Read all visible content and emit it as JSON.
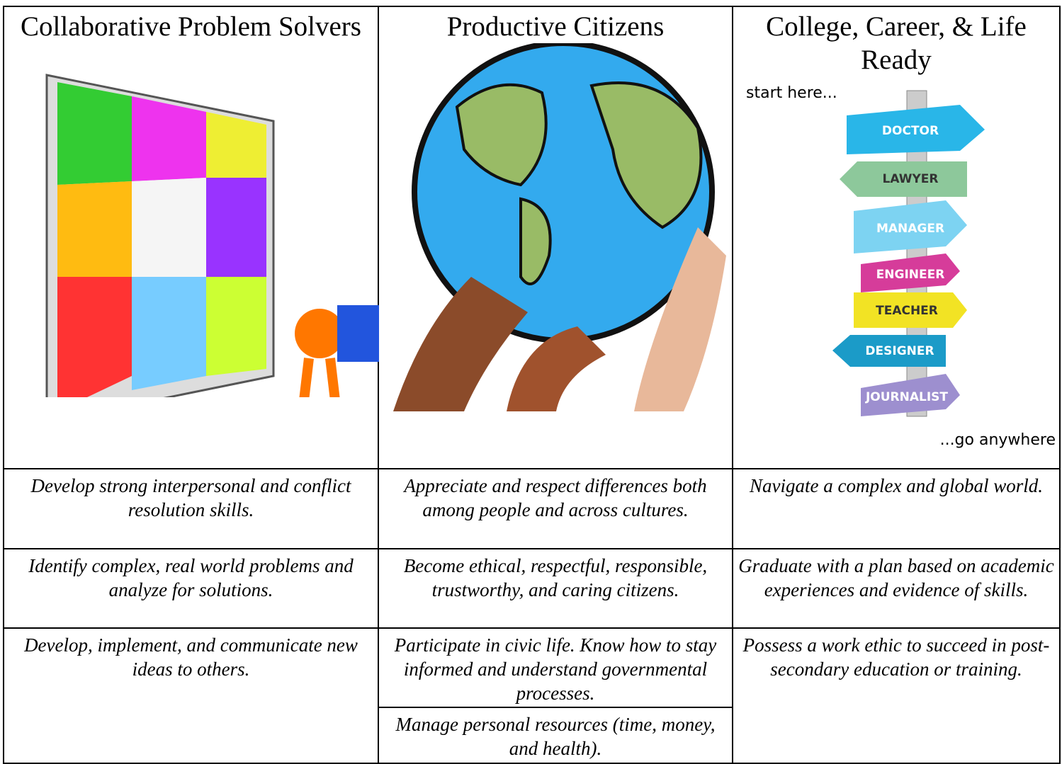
{
  "table": {
    "columns": [
      {
        "title": "Collaborative Problem Solvers",
        "items": [
          "Develop strong interpersonal and conflict resolution skills.",
          "Identify complex, real world problems and analyze for solutions.",
          "Develop, implement, and communicate new ideas to others."
        ]
      },
      {
        "title": "Productive Citizens",
        "items": [
          "Appreciate and respect differences both among people and across cultures.",
          "Become ethical, respectful, responsible, trustworthy, and caring citizens.",
          "Participate in civic life. Know how to stay informed and understand governmental processes.",
          "Manage personal resources (time, money, and health)."
        ]
      },
      {
        "title": "College, Career, & Life Ready",
        "items": [
          "Navigate a complex and global world.",
          "Graduate with a plan based on academic experiences and evidence of skills.",
          "Possess a work ethic to succeed in post-secondary education or training."
        ]
      }
    ],
    "signpost": {
      "top": "start here...",
      "bottom": "...go anywhere",
      "signs": [
        "DOCTOR",
        "LAWYER",
        "MANAGER",
        "ENGINEER",
        "TEACHER",
        "DESIGNER",
        "JOURNALIST"
      ]
    }
  }
}
